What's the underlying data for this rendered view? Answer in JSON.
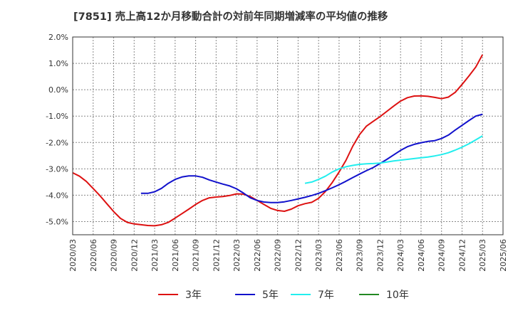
{
  "chart_data": {
    "type": "line",
    "title": "[7851]  売上高12か月移動合計の対前年同期増減率の平均値の推移",
    "xlabel": "",
    "ylabel": "",
    "ylim": [
      -5.5,
      2.0
    ],
    "yticks": [
      2.0,
      1.0,
      0.0,
      -1.0,
      -2.0,
      -3.0,
      -4.0,
      -5.0
    ],
    "ytick_labels": [
      "2.0%",
      "1.0%",
      "0.0%",
      "-1.0%",
      "-2.0%",
      "-3.0%",
      "-4.0%",
      "-5.0%"
    ],
    "xlim": [
      "2020-03",
      "2025-06"
    ],
    "xtick_labels": [
      "2020/03",
      "2020/06",
      "2020/09",
      "2020/12",
      "2021/03",
      "2021/06",
      "2021/09",
      "2021/12",
      "2022/03",
      "2022/06",
      "2022/09",
      "2022/12",
      "2023/03",
      "2023/06",
      "2023/09",
      "2023/12",
      "2024/03",
      "2024/06",
      "2024/09",
      "2024/12",
      "2025/03",
      "2025/06"
    ],
    "grid": true,
    "legend_position": "bottom",
    "series": [
      {
        "name": "3年",
        "color": "#dd1111",
        "x": [
          "2020-03",
          "2020-04",
          "2020-05",
          "2020-06",
          "2020-07",
          "2020-08",
          "2020-09",
          "2020-10",
          "2020-11",
          "2020-12",
          "2021-01",
          "2021-02",
          "2021-03",
          "2021-04",
          "2021-05",
          "2021-06",
          "2021-07",
          "2021-08",
          "2021-09",
          "2021-10",
          "2021-11",
          "2021-12",
          "2022-01",
          "2022-02",
          "2022-03",
          "2022-04",
          "2022-05",
          "2022-06",
          "2022-07",
          "2022-08",
          "2022-09",
          "2022-10",
          "2022-11",
          "2022-12",
          "2023-01",
          "2023-02",
          "2023-03",
          "2023-04",
          "2023-05",
          "2023-06",
          "2023-07",
          "2023-08",
          "2023-09",
          "2023-10",
          "2023-11",
          "2023-12",
          "2024-01",
          "2024-02",
          "2024-03",
          "2024-04",
          "2024-05",
          "2024-06",
          "2024-07",
          "2024-08",
          "2024-09",
          "2024-10",
          "2024-11",
          "2024-12",
          "2025-01",
          "2025-02",
          "2025-03"
        ],
        "values": [
          -3.15,
          -3.28,
          -3.48,
          -3.75,
          -4.02,
          -4.32,
          -4.62,
          -4.88,
          -5.03,
          -5.09,
          -5.12,
          -5.15,
          -5.16,
          -5.12,
          -5.03,
          -4.87,
          -4.7,
          -4.53,
          -4.35,
          -4.2,
          -4.1,
          -4.07,
          -4.05,
          -4.01,
          -3.95,
          -3.96,
          -4.05,
          -4.2,
          -4.35,
          -4.5,
          -4.58,
          -4.61,
          -4.53,
          -4.4,
          -4.32,
          -4.27,
          -4.12,
          -3.86,
          -3.52,
          -3.12,
          -2.68,
          -2.14,
          -1.7,
          -1.38,
          -1.2,
          -1.02,
          -0.82,
          -0.62,
          -0.43,
          -0.3,
          -0.24,
          -0.23,
          -0.25,
          -0.29,
          -0.34,
          -0.28,
          -0.1,
          0.2,
          0.52,
          0.86,
          1.33
        ]
      },
      {
        "name": "5年",
        "color": "#1111cc",
        "x": [
          "2021-01",
          "2021-02",
          "2021-03",
          "2021-04",
          "2021-05",
          "2021-06",
          "2021-07",
          "2021-08",
          "2021-09",
          "2021-10",
          "2021-11",
          "2021-12",
          "2022-01",
          "2022-02",
          "2022-03",
          "2022-04",
          "2022-05",
          "2022-06",
          "2022-07",
          "2022-08",
          "2022-09",
          "2022-10",
          "2022-11",
          "2022-12",
          "2023-01",
          "2023-02",
          "2023-03",
          "2023-04",
          "2023-05",
          "2023-06",
          "2023-07",
          "2023-08",
          "2023-09",
          "2023-10",
          "2023-11",
          "2023-12",
          "2024-01",
          "2024-02",
          "2024-03",
          "2024-04",
          "2024-05",
          "2024-06",
          "2024-07",
          "2024-08",
          "2024-09",
          "2024-10",
          "2024-11",
          "2024-12",
          "2025-01",
          "2025-02",
          "2025-03"
        ],
        "values": [
          -3.93,
          -3.93,
          -3.87,
          -3.74,
          -3.55,
          -3.4,
          -3.31,
          -3.27,
          -3.27,
          -3.32,
          -3.42,
          -3.5,
          -3.58,
          -3.65,
          -3.76,
          -3.92,
          -4.1,
          -4.2,
          -4.26,
          -4.28,
          -4.28,
          -4.25,
          -4.2,
          -4.14,
          -4.08,
          -4.01,
          -3.93,
          -3.83,
          -3.72,
          -3.6,
          -3.47,
          -3.33,
          -3.2,
          -3.07,
          -2.95,
          -2.8,
          -2.64,
          -2.47,
          -2.3,
          -2.16,
          -2.07,
          -2.01,
          -1.96,
          -1.93,
          -1.85,
          -1.72,
          -1.53,
          -1.35,
          -1.17,
          -1.0,
          -0.93
        ]
      },
      {
        "name": "7年",
        "color": "#22eeee",
        "x": [
          "2023-01",
          "2023-02",
          "2023-03",
          "2023-04",
          "2023-05",
          "2023-06",
          "2023-07",
          "2023-08",
          "2023-09",
          "2023-10",
          "2023-11",
          "2023-12",
          "2024-01",
          "2024-02",
          "2024-03",
          "2024-04",
          "2024-05",
          "2024-06",
          "2024-07",
          "2024-08",
          "2024-09",
          "2024-10",
          "2024-11",
          "2024-12",
          "2025-01",
          "2025-02",
          "2025-03"
        ],
        "values": [
          -3.55,
          -3.5,
          -3.4,
          -3.28,
          -3.12,
          -3.0,
          -2.92,
          -2.87,
          -2.83,
          -2.81,
          -2.8,
          -2.78,
          -2.74,
          -2.7,
          -2.67,
          -2.64,
          -2.61,
          -2.58,
          -2.55,
          -2.51,
          -2.46,
          -2.39,
          -2.29,
          -2.18,
          -2.05,
          -1.9,
          -1.75
        ]
      },
      {
        "name": "10年",
        "color": "#228822",
        "x": [],
        "values": []
      }
    ]
  }
}
